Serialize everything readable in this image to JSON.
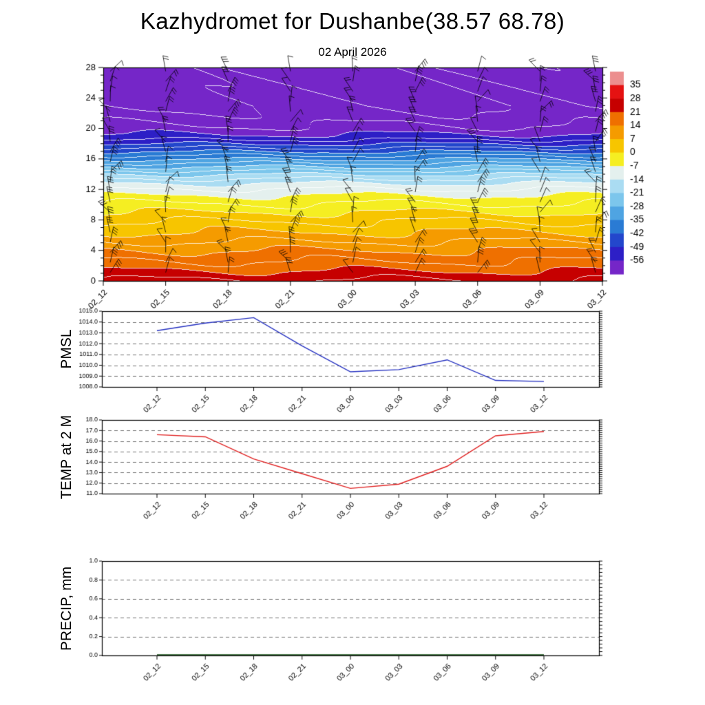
{
  "page": {
    "title": "Kazhydromet for Dushanbe(38.57 68.78)",
    "subtitle": "02 April 2026"
  },
  "time_labels": [
    "02_12",
    "02_15",
    "02_18",
    "02_21",
    "03_00",
    "03_03",
    "03_06",
    "03_09",
    "03_12"
  ],
  "chart_data": [
    {
      "type": "heatmap",
      "name": "temperature-height-cross-section",
      "x": [
        "02_12",
        "02_15",
        "02_18",
        "02_21",
        "03_00",
        "03_03",
        "03_06",
        "03_09",
        "03_12"
      ],
      "ylim": [
        0,
        28
      ],
      "yticks": [
        0,
        4,
        8,
        12,
        16,
        20,
        24,
        28
      ],
      "wind_barbs": true,
      "profile": {
        "heights": [
          0,
          2,
          4,
          6,
          8,
          10,
          11,
          12,
          13,
          14,
          15,
          16,
          17,
          18,
          19,
          20,
          21.5,
          23,
          28
        ],
        "temps": [
          25,
          19,
          14,
          8,
          3,
          -3,
          -6,
          -10,
          -15,
          -21,
          -28,
          -35,
          -42,
          -49,
          -55,
          -58.5,
          -61.5,
          -63.5,
          -64.5
        ]
      },
      "colorbar": {
        "levels": [
          35,
          28,
          21,
          14,
          7,
          0,
          -7,
          -14,
          -21,
          -28,
          -35,
          -42,
          -49,
          -56
        ],
        "colors_high_to_low": [
          "#ec8f8f",
          "#e51212",
          "#c60000",
          "#ef7000",
          "#f59b00",
          "#f7c500",
          "#f5ee22",
          "#e4f0ee",
          "#aadcf2",
          "#7cc6ec",
          "#4fa4e2",
          "#2a7bd4",
          "#2347cc",
          "#2d1fc6",
          "#7526c8"
        ]
      }
    },
    {
      "type": "line",
      "name": "pmsl-series",
      "label": "PMSL",
      "color": "#2430c0",
      "x": [
        "02_12",
        "02_15",
        "02_18",
        "02_21",
        "03_00",
        "03_03",
        "03_06",
        "03_09",
        "03_12"
      ],
      "values": [
        1013.2,
        1013.9,
        1014.4,
        1011.8,
        1009.4,
        1009.6,
        1010.5,
        1008.6,
        1008.5
      ],
      "ylim": [
        1008,
        1015
      ],
      "ytick_step": 1,
      "ytick_labels": [
        "1008.0",
        "1009.0",
        "1010.0",
        "1011.0",
        "1012.0",
        "1013.0",
        "1014.0",
        "1015.0"
      ]
    },
    {
      "type": "line",
      "name": "temp-2m-series",
      "label": "TEMP at 2 M",
      "color": "#e02020",
      "x": [
        "02_12",
        "02_15",
        "02_18",
        "02_21",
        "03_00",
        "03_03",
        "03_06",
        "03_09",
        "03_12"
      ],
      "values": [
        16.6,
        16.4,
        14.3,
        12.9,
        11.5,
        11.9,
        13.6,
        16.5,
        16.9
      ],
      "ylim": [
        11,
        18
      ],
      "ytick_step": 1,
      "ytick_labels": [
        "11.0",
        "12.0",
        "13.0",
        "14.0",
        "15.0",
        "16.0",
        "17.0",
        "18.0"
      ]
    },
    {
      "type": "line",
      "name": "precip-series",
      "label": "PRECIP, mm",
      "color": "#104a10",
      "x": [
        "02_12",
        "02_15",
        "02_18",
        "02_21",
        "03_00",
        "03_03",
        "03_06",
        "03_09",
        "03_12"
      ],
      "values": [
        0,
        0,
        0,
        0,
        0,
        0,
        0,
        0,
        0
      ],
      "ylim": [
        0,
        1
      ],
      "ytick_step": 0.2,
      "ytick_labels": [
        "0.0",
        "0.2",
        "0.4",
        "0.6",
        "0.8",
        "1.0"
      ]
    }
  ]
}
